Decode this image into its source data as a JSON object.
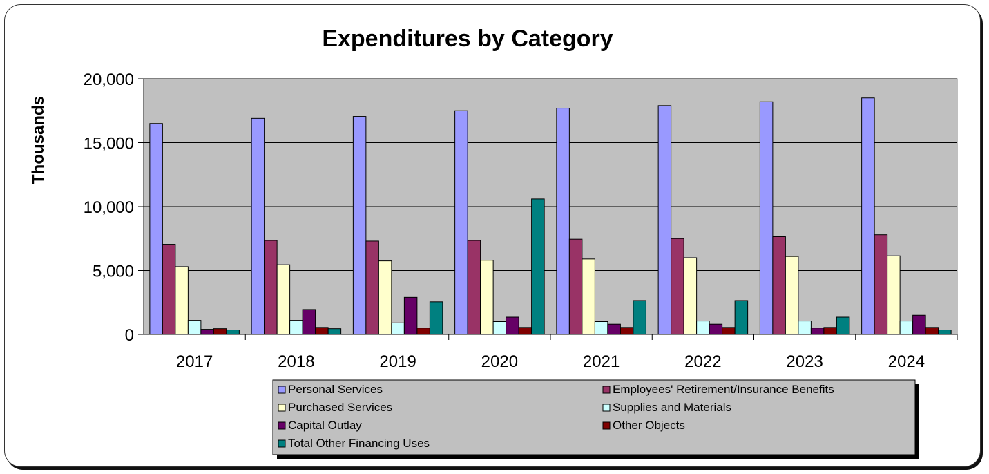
{
  "chart_data": {
    "type": "bar",
    "title": "Expenditures by Category",
    "xlabel": "",
    "ylabel": "Thousands",
    "ylim": [
      0,
      20000
    ],
    "yticks": [
      "0",
      "5,000",
      "10,000",
      "15,000",
      "20,000"
    ],
    "grid": true,
    "legend_position": "bottom",
    "categories": [
      "2017",
      "2018",
      "2019",
      "2020",
      "2021",
      "2022",
      "2023",
      "2024"
    ],
    "series": [
      {
        "name": "Personal Services",
        "color": "#9999ff",
        "values": [
          16500,
          16900,
          17050,
          17500,
          17700,
          17900,
          18200,
          18500
        ]
      },
      {
        "name": "Employees' Retirement/Insurance Benefits",
        "color": "#993366",
        "values": [
          7050,
          7350,
          7300,
          7350,
          7450,
          7500,
          7650,
          7800
        ]
      },
      {
        "name": "Purchased Services",
        "color": "#ffffcc",
        "values": [
          5300,
          5450,
          5750,
          5800,
          5900,
          6000,
          6100,
          6150
        ]
      },
      {
        "name": "Supplies and Materials",
        "color": "#ccffff",
        "values": [
          1100,
          1100,
          900,
          1000,
          1000,
          1050,
          1050,
          1050
        ]
      },
      {
        "name": "Capital Outlay",
        "color": "#660066",
        "values": [
          400,
          1950,
          2900,
          1350,
          800,
          800,
          500,
          1500
        ]
      },
      {
        "name": "Other Objects",
        "color": "#800000",
        "values": [
          450,
          550,
          500,
          550,
          550,
          550,
          550,
          550
        ]
      },
      {
        "name": "Total Other Financing Uses",
        "color": "#008080",
        "values": [
          350,
          450,
          2550,
          10600,
          2650,
          2650,
          1350,
          350
        ]
      }
    ]
  }
}
